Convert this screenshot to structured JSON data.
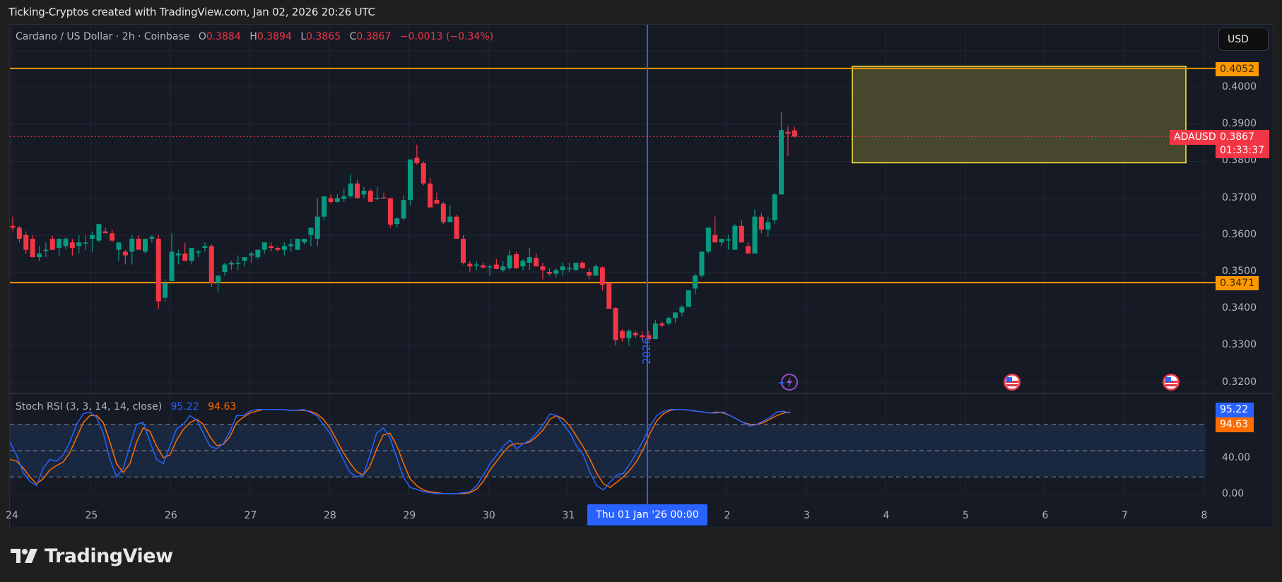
{
  "caption": "Ticking-Cryptos created with TradingView.com, Jan 02, 2026 20:26 UTC",
  "legend": {
    "symbol": "Cardano / US Dollar · 2h · Coinbase",
    "o_label": "O",
    "o": "0.3884",
    "h_label": "H",
    "h": "0.3894",
    "l_label": "L",
    "l": "0.3865",
    "c_label": "C",
    "c": "0.3867",
    "change": "−0.0013 (−0.34%)"
  },
  "currency_button": "USD",
  "price_axis": {
    "labels": [
      "0.4000",
      "0.3900",
      "0.3800",
      "0.3700",
      "0.3600",
      "0.3500",
      "0.3400",
      "0.3300",
      "0.3200"
    ],
    "resistance_tag": "0.4052",
    "support_tag": "0.3471",
    "symbol_tag": "ADAUSD",
    "last_price": "0.3867",
    "countdown": "01:33:37"
  },
  "stoch": {
    "title": "Stoch RSI (3, 3, 14, 14, close)",
    "k_value": "95.22",
    "d_value": "94.63",
    "axis_labels": [
      "40.00",
      "0.00"
    ],
    "k_tag": "95.22",
    "d_tag": "94.63"
  },
  "time_axis": {
    "labels": [
      "24",
      "25",
      "26",
      "27",
      "28",
      "29",
      "30",
      "31",
      "2",
      "3",
      "4",
      "5",
      "6",
      "7",
      "8"
    ],
    "crosshair_date": "Thu 01 Jan '26   00:00",
    "year_marker": "2026"
  },
  "colors": {
    "up": "#089981",
    "down": "#f23645",
    "level_line": "#ff9800",
    "zone_fill": "#4a4a2e",
    "zone_border": "#ffeb3b",
    "k_line": "#2962ff",
    "d_line": "#ff6d00",
    "crosshair": "#2962ff"
  },
  "brand": "TradingView",
  "chart_data": {
    "type": "candlestick",
    "title": "Cardano / US Dollar · 2h · Coinbase",
    "ylim": [
      0.318,
      0.412
    ],
    "levels": [
      0.4052,
      0.3471
    ],
    "zone": {
      "top": 0.4052,
      "bottom": 0.3796,
      "from": "Jan 3 ~14:00",
      "to": "Jan 8 ~00:00"
    },
    "candles": [
      [
        0.3625,
        0.365,
        0.361,
        0.362
      ],
      [
        0.362,
        0.3625,
        0.358,
        0.359
      ],
      [
        0.36,
        0.361,
        0.355,
        0.356
      ],
      [
        0.359,
        0.36,
        0.354,
        0.354
      ],
      [
        0.354,
        0.357,
        0.353,
        0.355
      ],
      [
        0.356,
        0.358,
        0.354,
        0.356
      ],
      [
        0.359,
        0.3598,
        0.356,
        0.356
      ],
      [
        0.3565,
        0.3585,
        0.3545,
        0.359
      ],
      [
        0.357,
        0.3595,
        0.356,
        0.359
      ],
      [
        0.358,
        0.359,
        0.3545,
        0.3565
      ],
      [
        0.357,
        0.36,
        0.355,
        0.358
      ],
      [
        0.358,
        0.36,
        0.356,
        0.358
      ],
      [
        0.359,
        0.361,
        0.3555,
        0.36
      ],
      [
        0.3585,
        0.3625,
        0.358,
        0.363
      ],
      [
        0.361,
        0.362,
        0.361,
        0.3605
      ],
      [
        0.3605,
        0.3615,
        0.358,
        0.3585
      ],
      [
        0.356,
        0.3565,
        0.353,
        0.358
      ],
      [
        0.3555,
        0.356,
        0.352,
        0.3545
      ],
      [
        0.3555,
        0.36,
        0.352,
        0.359
      ],
      [
        0.359,
        0.36,
        0.357,
        0.356
      ],
      [
        0.3555,
        0.359,
        0.355,
        0.359
      ],
      [
        0.359,
        0.36,
        0.358,
        0.3595
      ],
      [
        0.359,
        0.36,
        0.34,
        0.342
      ],
      [
        0.343,
        0.348,
        0.342,
        0.347
      ],
      [
        0.3475,
        0.3605,
        0.348,
        0.3555
      ],
      [
        0.3545,
        0.356,
        0.352,
        0.355
      ],
      [
        0.355,
        0.358,
        0.354,
        0.353
      ],
      [
        0.353,
        0.3565,
        0.352,
        0.3565
      ],
      [
        0.3555,
        0.356,
        0.354,
        0.3555
      ],
      [
        0.3565,
        0.358,
        0.3555,
        0.357
      ],
      [
        0.357,
        0.3575,
        0.346,
        0.347
      ],
      [
        0.347,
        0.3485,
        0.3445,
        0.349
      ],
      [
        0.35,
        0.3525,
        0.349,
        0.352
      ],
      [
        0.352,
        0.353,
        0.3505,
        0.3525
      ],
      [
        0.3525,
        0.3545,
        0.3505,
        0.3525
      ],
      [
        0.353,
        0.3535,
        0.3515,
        0.354
      ],
      [
        0.3545,
        0.3555,
        0.3525,
        0.355
      ],
      [
        0.354,
        0.356,
        0.3535,
        0.356
      ],
      [
        0.356,
        0.3575,
        0.355,
        0.358
      ],
      [
        0.357,
        0.358,
        0.3555,
        0.3565
      ],
      [
        0.3565,
        0.357,
        0.3555,
        0.356
      ],
      [
        0.356,
        0.358,
        0.3545,
        0.357
      ],
      [
        0.357,
        0.359,
        0.3555,
        0.3575
      ],
      [
        0.356,
        0.358,
        0.356,
        0.359
      ],
      [
        0.358,
        0.358,
        0.3575,
        0.359
      ],
      [
        0.36,
        0.359,
        0.357,
        0.362
      ],
      [
        0.359,
        0.37,
        0.357,
        0.365
      ],
      [
        0.365,
        0.37,
        0.364,
        0.3705
      ],
      [
        0.37,
        0.371,
        0.3685,
        0.369
      ],
      [
        0.369,
        0.371,
        0.3688,
        0.37
      ],
      [
        0.3698,
        0.3725,
        0.369,
        0.3705
      ],
      [
        0.3705,
        0.3765,
        0.37,
        0.374
      ],
      [
        0.374,
        0.375,
        0.37,
        0.37
      ],
      [
        0.371,
        0.373,
        0.37,
        0.372
      ],
      [
        0.372,
        0.3725,
        0.369,
        0.369
      ],
      [
        0.37,
        0.373,
        0.3695,
        0.37
      ],
      [
        0.3702,
        0.3715,
        0.37,
        0.37
      ],
      [
        0.37,
        0.37,
        0.362,
        0.3628
      ],
      [
        0.363,
        0.3648,
        0.362,
        0.3645
      ],
      [
        0.3645,
        0.3708,
        0.364,
        0.3695
      ],
      [
        0.3695,
        0.379,
        0.368,
        0.3805
      ],
      [
        0.381,
        0.3845,
        0.379,
        0.3795
      ],
      [
        0.3795,
        0.38,
        0.3735,
        0.374
      ],
      [
        0.374,
        0.3755,
        0.3705,
        0.3675
      ],
      [
        0.3695,
        0.3715,
        0.369,
        0.3685
      ],
      [
        0.3685,
        0.369,
        0.363,
        0.3635
      ],
      [
        0.3635,
        0.368,
        0.3648,
        0.365
      ],
      [
        0.365,
        0.3655,
        0.361,
        0.359
      ],
      [
        0.359,
        0.36,
        0.352,
        0.3525
      ],
      [
        0.3522,
        0.353,
        0.35,
        0.3515
      ],
      [
        0.3518,
        0.353,
        0.3505,
        0.352
      ],
      [
        0.3518,
        0.3525,
        0.351,
        0.3512
      ],
      [
        0.3515,
        0.352,
        0.349,
        0.3515
      ],
      [
        0.352,
        0.3535,
        0.351,
        0.3508
      ],
      [
        0.3505,
        0.353,
        0.35,
        0.3515
      ],
      [
        0.351,
        0.356,
        0.3505,
        0.3545
      ],
      [
        0.3548,
        0.3555,
        0.3525,
        0.351
      ],
      [
        0.3515,
        0.3535,
        0.3505,
        0.353
      ],
      [
        0.3525,
        0.3565,
        0.3505,
        0.354
      ],
      [
        0.3538,
        0.355,
        0.352,
        0.3515
      ],
      [
        0.3515,
        0.3525,
        0.348,
        0.3505
      ],
      [
        0.35,
        0.351,
        0.349,
        0.3495
      ],
      [
        0.3495,
        0.351,
        0.3485,
        0.3505
      ],
      [
        0.3505,
        0.3525,
        0.349,
        0.3515
      ],
      [
        0.351,
        0.3525,
        0.35,
        0.351
      ],
      [
        0.3505,
        0.3525,
        0.351,
        0.3525
      ],
      [
        0.3525,
        0.353,
        0.351,
        0.351
      ],
      [
        0.35,
        0.351,
        0.348,
        0.349
      ],
      [
        0.349,
        0.352,
        0.3492,
        0.3515
      ],
      [
        0.3512,
        0.3515,
        0.345,
        0.3465
      ],
      [
        0.347,
        0.3465,
        0.34,
        0.34
      ],
      [
        0.3402,
        0.3405,
        0.33,
        0.3315
      ],
      [
        0.334,
        0.3345,
        0.331,
        0.332
      ],
      [
        0.332,
        0.3345,
        0.33,
        0.334
      ],
      [
        0.3335,
        0.334,
        0.332,
        0.3328
      ],
      [
        0.3328,
        0.334,
        0.3315,
        0.3323
      ],
      [
        0.3328,
        0.334,
        0.3315,
        0.3318
      ],
      [
        0.3318,
        0.337,
        0.332,
        0.336
      ],
      [
        0.336,
        0.3365,
        0.335,
        0.3355
      ],
      [
        0.336,
        0.338,
        0.3355,
        0.3375
      ],
      [
        0.3375,
        0.3385,
        0.3362,
        0.339
      ],
      [
        0.339,
        0.341,
        0.338,
        0.3405
      ],
      [
        0.3405,
        0.344,
        0.341,
        0.345
      ],
      [
        0.3455,
        0.3495,
        0.344,
        0.349
      ],
      [
        0.349,
        0.353,
        0.3485,
        0.3555
      ],
      [
        0.3555,
        0.3615,
        0.355,
        0.362
      ],
      [
        0.36,
        0.365,
        0.358,
        0.358
      ],
      [
        0.358,
        0.359,
        0.357,
        0.359
      ],
      [
        0.3585,
        0.36,
        0.356,
        0.3588
      ],
      [
        0.356,
        0.363,
        0.356,
        0.3625
      ],
      [
        0.3625,
        0.364,
        0.359,
        0.358
      ],
      [
        0.357,
        0.358,
        0.355,
        0.355
      ],
      [
        0.355,
        0.367,
        0.355,
        0.365
      ],
      [
        0.365,
        0.366,
        0.3605,
        0.3615
      ],
      [
        0.3615,
        0.365,
        0.3595,
        0.3635
      ],
      [
        0.364,
        0.3715,
        0.363,
        0.371
      ],
      [
        0.371,
        0.3935,
        0.371,
        0.3885
      ],
      [
        0.388,
        0.3895,
        0.3815,
        0.3875
      ],
      [
        0.3884,
        0.3894,
        0.3865,
        0.3867
      ]
    ],
    "stoch_k_approx": "oscillates 0-100, ends 95.22",
    "stoch_d_approx": "ends 94.63"
  }
}
